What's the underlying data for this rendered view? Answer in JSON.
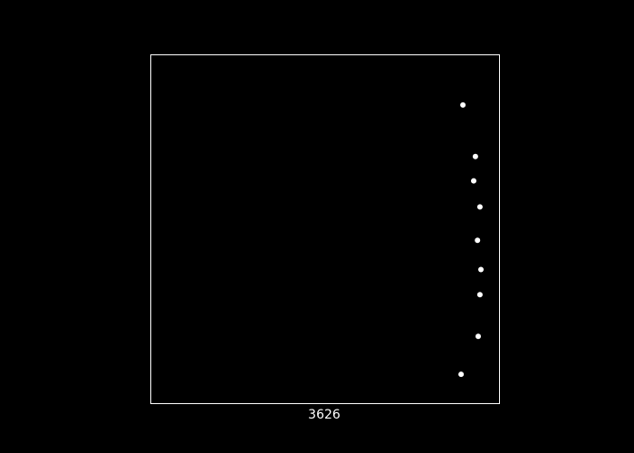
{
  "colors": {
    "background": "#000000",
    "frame": "#ffffff",
    "points": "#ffffff",
    "text": "#ffffff"
  },
  "chart_data": {
    "type": "scatter",
    "title": "",
    "xlabel": "3626",
    "ylabel": "",
    "grid": false,
    "legend": "none",
    "xlim": [
      0,
      1
    ],
    "ylim": [
      0,
      1
    ],
    "points": [
      {
        "x": 0.896,
        "y": 0.857
      },
      {
        "x": 0.932,
        "y": 0.709
      },
      {
        "x": 0.927,
        "y": 0.639
      },
      {
        "x": 0.945,
        "y": 0.564
      },
      {
        "x": 0.938,
        "y": 0.468
      },
      {
        "x": 0.948,
        "y": 0.384
      },
      {
        "x": 0.945,
        "y": 0.312
      },
      {
        "x": 0.94,
        "y": 0.192
      },
      {
        "x": 0.891,
        "y": 0.083
      }
    ]
  }
}
